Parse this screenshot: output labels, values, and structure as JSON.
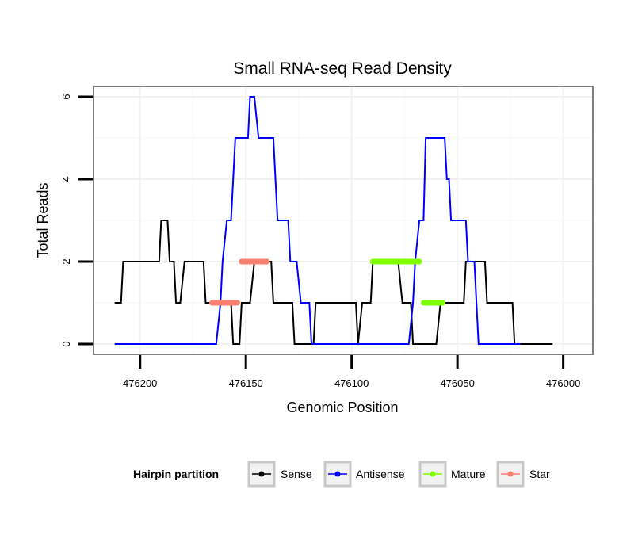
{
  "chart_data": {
    "type": "line",
    "title": "Small RNA-seq Read Density",
    "xlabel": "Genomic Position",
    "ylabel": "Total Reads",
    "xlim": [
      476222,
      475986
    ],
    "ylim": [
      -0.25,
      6.25
    ],
    "x_reversed": true,
    "x_ticks": [
      476200,
      476150,
      476100,
      476050,
      476000
    ],
    "x_tick_labels": [
      "476200",
      "476150",
      "476100",
      "476050",
      "476000"
    ],
    "y_ticks": [
      0,
      2,
      4,
      6
    ],
    "y_tick_labels": [
      "0",
      "2",
      "4",
      "6"
    ],
    "grid": true,
    "legend": {
      "title": "Hairpin partition",
      "position": "bottom",
      "entries": [
        {
          "name": "Sense",
          "color": "#000000"
        },
        {
          "name": "Antisense",
          "color": "#0000ff"
        },
        {
          "name": "Mature",
          "color": "#7fff00"
        },
        {
          "name": "Star",
          "color": "#fa8072"
        }
      ]
    },
    "series": [
      {
        "name": "Sense",
        "color": "#000000",
        "points": [
          [
            476212,
            1
          ],
          [
            476209,
            1
          ],
          [
            476208,
            2
          ],
          [
            476201,
            2
          ],
          [
            476191,
            2
          ],
          [
            476190,
            3
          ],
          [
            476187,
            3
          ],
          [
            476186,
            2
          ],
          [
            476184,
            2
          ],
          [
            476183,
            1
          ],
          [
            476181,
            1
          ],
          [
            476179,
            2
          ],
          [
            476170,
            2
          ],
          [
            476169,
            1
          ],
          [
            476161,
            1
          ],
          [
            476157,
            1
          ],
          [
            476156,
            0
          ],
          [
            476153,
            0
          ],
          [
            476152,
            1
          ],
          [
            476148,
            1
          ],
          [
            476146,
            2
          ],
          [
            476138,
            2
          ],
          [
            476137,
            1
          ],
          [
            476130,
            1
          ],
          [
            476128,
            1
          ],
          [
            476127,
            0
          ],
          [
            476118,
            0
          ],
          [
            476117,
            1
          ],
          [
            476102,
            1
          ],
          [
            476098,
            1
          ],
          [
            476097,
            0
          ],
          [
            476095,
            1
          ],
          [
            476091,
            1
          ],
          [
            476090,
            2
          ],
          [
            476078,
            2
          ],
          [
            476076,
            1
          ],
          [
            476072,
            1
          ],
          [
            476071,
            0
          ],
          [
            476060,
            0
          ],
          [
            476058,
            1
          ],
          [
            476047,
            1
          ],
          [
            476046,
            2
          ],
          [
            476037,
            2
          ],
          [
            476036,
            1
          ],
          [
            476024,
            1
          ],
          [
            476023,
            0
          ],
          [
            476005,
            0
          ]
        ]
      },
      {
        "name": "Antisense",
        "color": "#0000ff",
        "points": [
          [
            476212,
            0
          ],
          [
            476164,
            0
          ],
          [
            476162,
            1
          ],
          [
            476161,
            2
          ],
          [
            476159,
            3
          ],
          [
            476157,
            3
          ],
          [
            476155,
            5
          ],
          [
            476149,
            5
          ],
          [
            476148,
            6
          ],
          [
            476146,
            6
          ],
          [
            476144,
            5
          ],
          [
            476137,
            5
          ],
          [
            476135,
            3
          ],
          [
            476130,
            3
          ],
          [
            476129,
            2
          ],
          [
            476126,
            2
          ],
          [
            476124,
            1
          ],
          [
            476120,
            1
          ],
          [
            476119,
            0
          ],
          [
            476073,
            0
          ],
          [
            476071,
            1
          ],
          [
            476070,
            2
          ],
          [
            476068,
            3
          ],
          [
            476066,
            3
          ],
          [
            476065,
            5
          ],
          [
            476056,
            5
          ],
          [
            476055,
            4
          ],
          [
            476054,
            4
          ],
          [
            476053,
            3
          ],
          [
            476046,
            3
          ],
          [
            476045,
            2
          ],
          [
            476042,
            2
          ],
          [
            476040,
            0
          ],
          [
            476020,
            0
          ]
        ]
      },
      {
        "name": "Mature",
        "color": "#7fff00",
        "segments": [
          {
            "x": [
              476090,
              476068
            ],
            "y": 2
          },
          {
            "x": [
              476066,
              476057
            ],
            "y": 1
          }
        ]
      },
      {
        "name": "Star",
        "color": "#fa8072",
        "segments": [
          {
            "x": [
              476152,
              476140
            ],
            "y": 2
          },
          {
            "x": [
              476166,
              476154
            ],
            "y": 1
          }
        ]
      }
    ]
  }
}
